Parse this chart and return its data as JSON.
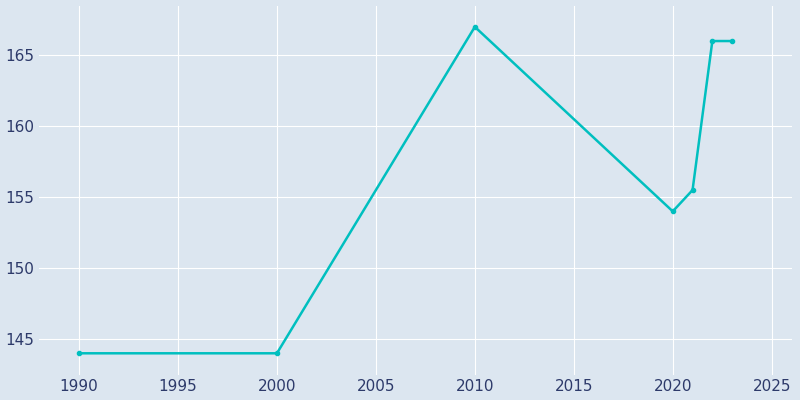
{
  "years": [
    1990,
    2000,
    2010,
    2020,
    2021,
    2022,
    2023
  ],
  "population": [
    144,
    144,
    167,
    154,
    155.5,
    166,
    166
  ],
  "line_color": "#00BFBF",
  "line_width": 1.8,
  "plot_bg_color": "#DCE6F0",
  "outer_bg_color": "#DCE6F0",
  "grid_color": "#FFFFFF",
  "xticks": [
    1990,
    1995,
    2000,
    2005,
    2010,
    2015,
    2020,
    2025
  ],
  "yticks": [
    145,
    150,
    155,
    160,
    165
  ],
  "xlim": [
    1988,
    2026
  ],
  "ylim": [
    142.5,
    168.5
  ],
  "tick_color": "#2D3A6A",
  "tick_fontsize": 11,
  "marker_size": 3,
  "marker_color": "#00BFBF"
}
